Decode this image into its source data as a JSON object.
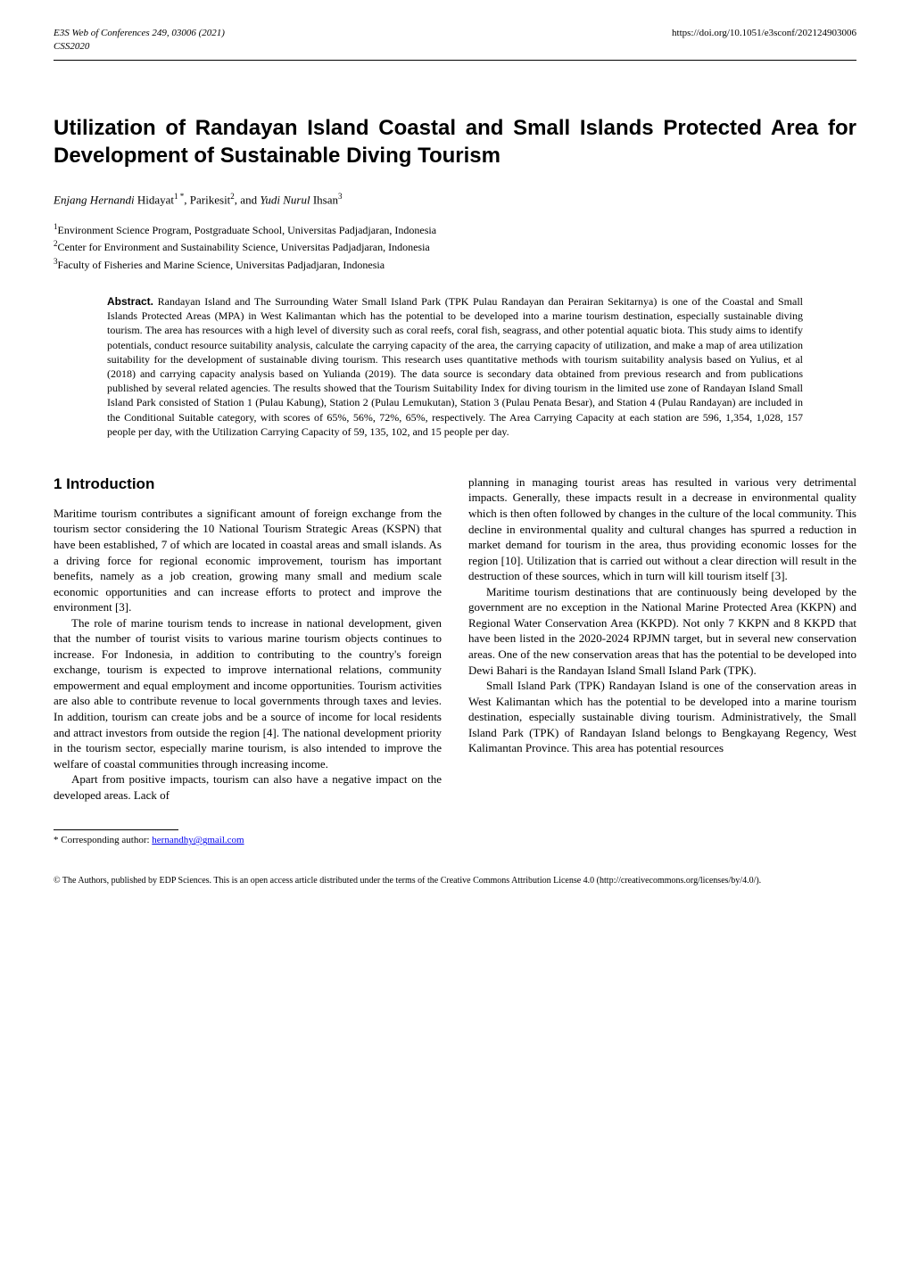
{
  "header": {
    "left_line1": "E3S Web of Conferences 249, 03006 (2021)",
    "left_line2": "CSS2020",
    "right": "https://doi.org/10.1051/e3sconf/202124903006"
  },
  "title": "Utilization of Randayan Island Coastal and Small Islands Protected Area for Development of Sustainable Diving Tourism",
  "authors": {
    "a1_first": "Enjang Hernandi",
    "a1_last": " Hidayat",
    "a1_sup": "1 *",
    "sep1": ", ",
    "a2_first": "Parikesit",
    "a2_sup": "2",
    "sep2": ", and ",
    "a3_first": "Yudi Nurul",
    "a3_last": " Ihsan",
    "a3_sup": "3"
  },
  "affiliations": {
    "af1": "Environment Science Program, Postgraduate School, Universitas Padjadjaran, Indonesia",
    "af2": "Center for Environment and Sustainability Science, Universitas Padjadjaran, Indonesia",
    "af3": "Faculty of Fisheries and Marine Science, Universitas Padjadjaran, Indonesia"
  },
  "abstract": {
    "label": "Abstract.",
    "text": " Randayan Island and The Surrounding Water Small Island Park (TPK Pulau Randayan dan Perairan Sekitarnya) is one of the Coastal and Small Islands Protected Areas (MPA) in West Kalimantan which has the potential to be developed into a marine tourism destination, especially sustainable diving tourism. The area has resources with a high level of diversity such as coral reefs, coral fish, seagrass, and other potential aquatic biota. This study aims to identify potentials, conduct resource suitability analysis, calculate the carrying capacity of the area, the carrying capacity of utilization, and make a map of area utilization suitability for the development of sustainable diving tourism. This research uses quantitative methods with tourism suitability analysis based on Yulius, et al (2018) and carrying capacity analysis based on Yulianda (2019). The data source is secondary data obtained from previous research and from publications published by several related agencies. The results showed that the Tourism Suitability Index for diving tourism in the limited use zone of Randayan Island Small Island Park consisted of Station 1 (Pulau Kabung), Station 2 (Pulau Lemukutan), Station 3 (Pulau Penata Besar), and Station 4 (Pulau Randayan) are included in the Conditional Suitable category, with scores of 65%, 56%, 72%, 65%, respectively. The Area Carrying Capacity at each station are 596, 1,354, 1,028, 157 people per day, with the Utilization Carrying Capacity of 59, 135, 102, and 15 people per day."
  },
  "section1": {
    "heading": "1 Introduction",
    "p1": "Maritime tourism contributes a significant amount of foreign exchange from the tourism sector considering the 10 National Tourism Strategic Areas (KSPN) that have been established, 7 of which are located in coastal areas and small islands. As a driving force for regional economic improvement, tourism has important benefits, namely as a job creation, growing many small and medium scale economic opportunities and can increase efforts to protect and improve the environment [3].",
    "p2": "The role of marine tourism tends to increase in national development, given that the number of tourist visits to various marine tourism objects continues to increase. For Indonesia, in addition to contributing to the country's foreign exchange, tourism is expected to improve international relations, community empowerment and equal employment and income opportunities. Tourism activities are also able to contribute revenue to local governments through taxes and levies. In addition, tourism can create jobs and be a source of income for local residents and attract investors from outside the region [4]. The national development priority in the tourism sector, especially marine tourism, is also intended to improve the welfare of coastal communities through increasing income.",
    "p3": "Apart from positive impacts, tourism can also have a negative impact on the developed areas. Lack of",
    "p4": "planning in managing tourist areas has resulted in various very detrimental impacts. Generally, these impacts result in a decrease in environmental quality which is then often followed by changes in the culture of the local community. This decline in environmental quality and cultural changes has spurred a reduction in market demand for tourism in the area, thus providing economic losses for the region [10]. Utilization that is carried out without a clear direction will result in the destruction of these sources, which in turn will kill tourism itself [3].",
    "p5": "Maritime tourism destinations that are continuously being developed by the government are no exception in the National Marine Protected Area (KKPN) and Regional Water Conservation Area (KKPD). Not only 7 KKPN and 8 KKPD that have been listed in the 2020-2024 RPJMN target, but in several new conservation areas. One of the new conservation areas that has the potential to be developed into Dewi Bahari is the Randayan Island Small Island Park (TPK).",
    "p6": "Small Island Park (TPK) Randayan Island is one of the conservation areas in West Kalimantan which has the potential to be developed into a marine tourism destination, especially sustainable diving tourism. Administratively, the Small Island Park (TPK) of Randayan Island belongs to Bengkayang Regency, West Kalimantan Province. This area has potential resources"
  },
  "footnote": {
    "label": "* Corresponding author: ",
    "email": "hernandhy@gmail.com"
  },
  "license": "© The Authors, published by EDP Sciences. This is an open access article distributed under the terms of the Creative Commons Attribution License 4.0 (http://creativecommons.org/licenses/by/4.0/)."
}
